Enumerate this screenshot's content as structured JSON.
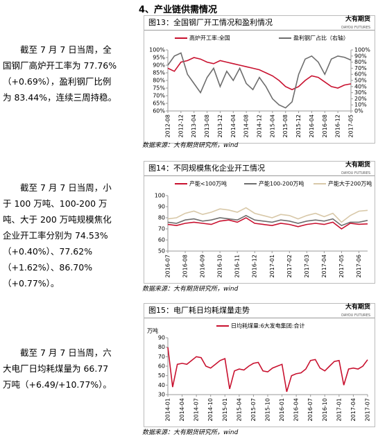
{
  "section_title": "4、产业链供需情况",
  "paragraphs": [
    "截至 7 月 7 日当周，全国钢厂高炉开工率为 77.76%（+0.69%），盈利钢厂比例为 83.44%，连续三周持稳。",
    "截至 7 月 7 日当周，小于 100 万吨、100-200 万吨、大于 200 万吨规模焦化企业开工率分别为 74.53%（+0.40%）、77.62%（+1.62%）、86.70%（+0.77%）。",
    "截至 7 月 7 日当周，六大电厂日均耗煤量为 66.77 万吨（+6.49/+10.77%）。"
  ],
  "logo_name": "大有期货",
  "logo_sub": "DAYOU FUTURES",
  "chart_data": [
    {
      "type": "line",
      "title": "图13：全国钢厂开工情况和盈利情况",
      "source": "数据来源：大有期货研究所，wind",
      "categories": [
        "2012-08",
        null,
        "2012-12",
        null,
        "2013-04",
        null,
        "2013-08",
        null,
        "2013-12",
        null,
        "2014-04",
        null,
        "2014-08",
        null,
        "2014-12",
        null,
        "2015-04",
        null,
        "2015-08",
        null,
        "2015-12",
        null,
        "2016-04",
        null,
        "2016-08",
        null,
        "2016-12",
        null,
        "2017-05"
      ],
      "series": [
        {
          "name": "高炉开工率:全国",
          "color": "#c8102e",
          "values": [
            88,
            86,
            92,
            93,
            95,
            94,
            92,
            91,
            93,
            92,
            91,
            90,
            89,
            88,
            87,
            85,
            83,
            80,
            76,
            74,
            76,
            80,
            83,
            82,
            79,
            76,
            75,
            77,
            77.76
          ]
        },
        {
          "name": "盈利钢厂占比（右轴）",
          "color": "#6d6d6d",
          "axis": "y2",
          "values": [
            75,
            90,
            95,
            60,
            45,
            30,
            55,
            70,
            40,
            65,
            50,
            70,
            45,
            35,
            55,
            40,
            20,
            10,
            5,
            15,
            60,
            85,
            90,
            80,
            60,
            85,
            90,
            88,
            83.44
          ]
        }
      ],
      "ylim": [
        60,
        100
      ],
      "yticks": [
        {
          "value": 60,
          "label": "60%"
        },
        {
          "value": 65,
          "label": "65%"
        },
        {
          "value": 70,
          "label": "70%"
        },
        {
          "value": 75,
          "label": "75%"
        },
        {
          "value": 80,
          "label": "80%"
        },
        {
          "value": 85,
          "label": "85%"
        },
        {
          "value": 90,
          "label": "90%"
        },
        {
          "value": 95,
          "label": "95%"
        },
        {
          "value": 100,
          "label": "100%"
        }
      ],
      "y2lim": [
        0,
        100
      ],
      "y2ticks": [
        {
          "value": 0,
          "label": "0%"
        },
        {
          "value": 10,
          "label": "10%"
        },
        {
          "value": 20,
          "label": "20%"
        },
        {
          "value": 30,
          "label": "30%"
        },
        {
          "value": 40,
          "label": "40%"
        },
        {
          "value": 50,
          "label": "50%"
        },
        {
          "value": 60,
          "label": "60%"
        },
        {
          "value": 70,
          "label": "70%"
        },
        {
          "value": 80,
          "label": "80%"
        },
        {
          "value": 90,
          "label": "90%"
        },
        {
          "value": 100,
          "label": "100%"
        }
      ]
    },
    {
      "type": "line",
      "title": "图14：不同规模焦化企业开工情况",
      "source": "数据来源：大有期货研究所，wind",
      "categories": [
        "2016-07",
        null,
        "2016-08",
        null,
        "2016-09",
        null,
        "2016-10",
        null,
        "2016-11",
        null,
        "2016-12",
        null,
        "2017-01",
        null,
        "2017-02",
        null,
        "2017-03",
        null,
        "2017-04",
        null,
        "2017-05",
        null,
        "2017-06",
        null
      ],
      "series": [
        {
          "name": "产能<100万吨",
          "color": "#c8102e",
          "values": [
            74,
            73,
            75,
            76,
            75,
            74,
            77,
            78,
            76,
            80,
            75,
            74,
            73,
            75,
            74,
            72,
            74,
            75,
            74,
            76,
            70,
            75,
            74.13,
            74.53
          ]
        },
        {
          "name": "产能100-200万吨",
          "color": "#6d6d6d",
          "values": [
            76,
            75,
            78,
            79,
            77,
            78,
            80,
            79,
            78,
            82,
            78,
            77,
            76,
            78,
            77,
            75,
            77,
            78,
            77,
            79,
            73,
            76,
            76,
            77.62
          ]
        },
        {
          "name": "产能大于200万吨",
          "color": "#d8c8a8",
          "values": [
            79,
            80,
            84,
            86,
            83,
            85,
            88,
            87,
            85,
            89,
            84,
            82,
            80,
            83,
            82,
            79,
            82,
            84,
            81,
            84,
            76,
            82,
            85.93,
            86.7
          ]
        }
      ],
      "ylim": [
        50,
        100
      ],
      "yticks": [
        50,
        60,
        70,
        80,
        90,
        100
      ]
    },
    {
      "type": "line",
      "title": "图15：电厂耗日均耗煤量走势",
      "source": "数据来源：大有期货研究所，wind",
      "y_label": "万吨",
      "categories": [
        "2014-01",
        null,
        null,
        "2014-04",
        null,
        null,
        "2014-07",
        null,
        null,
        "2014-10",
        null,
        null,
        "2015-01",
        null,
        null,
        "2015-04",
        null,
        null,
        "2015-07",
        null,
        null,
        "2015-10",
        null,
        null,
        "2016-01",
        null,
        null,
        "2016-04",
        null,
        null,
        "2016-07",
        null,
        null,
        "2016-10",
        null,
        null,
        "2017-01",
        null,
        null,
        "2017-04",
        null,
        null,
        "2017-07"
      ],
      "series": [
        {
          "name": "日均耗煤量:6大发电集团:合计",
          "color": "#c8102e",
          "values": [
            80,
            38,
            62,
            63,
            62,
            66,
            70,
            69,
            60,
            58,
            62,
            66,
            68,
            36,
            55,
            57,
            56,
            60,
            63,
            64,
            55,
            54,
            58,
            60,
            62,
            33,
            50,
            52,
            53,
            57,
            66,
            67,
            58,
            55,
            60,
            65,
            66,
            40,
            57,
            58,
            57,
            60,
            66.77
          ]
        }
      ],
      "ylim": [
        30,
        90
      ],
      "yticks": [
        30,
        40,
        50,
        60,
        70,
        80,
        90
      ]
    }
  ]
}
